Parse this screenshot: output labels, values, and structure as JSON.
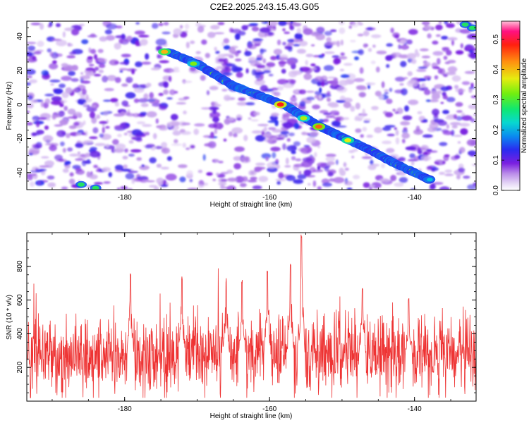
{
  "figure": {
    "title": "C2E2.2025.243.15.43.G05"
  },
  "chart_data": [
    {
      "type": "heatmap",
      "title": "",
      "xlabel": "Height of straight line (km)",
      "ylabel": "Frequency (Hz)",
      "xlim": [
        -193.5,
        -131.5
      ],
      "ylim": [
        -50,
        49
      ],
      "xticks": [
        -180,
        -160,
        -140
      ],
      "yticks": [
        -40,
        -20,
        0,
        20,
        40
      ],
      "colorbar": {
        "label": "Normalized spectral amplitude",
        "range": [
          0,
          0.56
        ],
        "ticks": [
          0.0,
          0.1,
          0.2,
          0.3,
          0.4,
          0.5
        ],
        "colormap": "white-violet-blue-cyan-green-yellow-red-magenta"
      },
      "ridge": {
        "description": "bright diagonal track of high amplitude",
        "points": [
          {
            "x": -186,
            "y": -47
          },
          {
            "x": -174,
            "y": 31
          },
          {
            "x": -170,
            "y": 24
          },
          {
            "x": -165,
            "y": 11
          },
          {
            "x": -158,
            "y": 0
          },
          {
            "x": -155,
            "y": -8
          },
          {
            "x": -153,
            "y": -13
          },
          {
            "x": -149,
            "y": -21
          },
          {
            "x": -146,
            "y": -27
          },
          {
            "x": -143,
            "y": -34
          },
          {
            "x": -138,
            "y": -44
          },
          {
            "x": -133,
            "y": 47
          }
        ],
        "peak": {
          "x": -158.5,
          "y": 0,
          "value": 0.56
        }
      }
    },
    {
      "type": "line",
      "title": "",
      "xlabel": "Height of straight line (km)",
      "ylabel": "SNR (10 * v/v)",
      "xlim": [
        -193.5,
        -131.5
      ],
      "ylim": [
        0,
        1000
      ],
      "xticks": [
        -180,
        -160,
        -140
      ],
      "yticks": [
        200,
        400,
        600,
        800
      ],
      "color": "#ee3333",
      "series_summary": {
        "baseline_mean": 270,
        "noise_amplitude": 140,
        "n_points": 1400,
        "spikes": [
          {
            "x": -179.2,
            "y": 760
          },
          {
            "x": -172.1,
            "y": 740
          },
          {
            "x": -166.0,
            "y": 730
          },
          {
            "x": -163.8,
            "y": 720
          },
          {
            "x": -160.3,
            "y": 780
          },
          {
            "x": -157.1,
            "y": 820
          },
          {
            "x": -155.6,
            "y": 990
          },
          {
            "x": -147.2,
            "y": 680
          },
          {
            "x": -140.8,
            "y": 620
          }
        ]
      }
    }
  ]
}
